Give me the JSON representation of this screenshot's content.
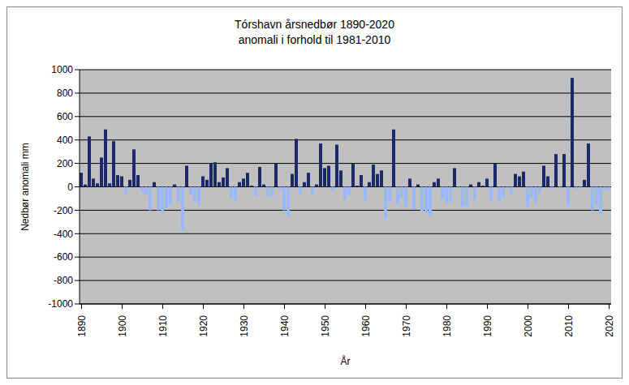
{
  "chart_data": {
    "type": "bar",
    "title": "Tórshavn årsnedbør 1890-2020",
    "subtitle": "anomali i forhold til 1981-2010",
    "x_label": "År",
    "y_label": "Nedbør anomali mm",
    "x": [
      1890,
      1891,
      1892,
      1893,
      1894,
      1895,
      1896,
      1897,
      1898,
      1899,
      1900,
      1901,
      1902,
      1903,
      1904,
      1905,
      1906,
      1907,
      1908,
      1909,
      1910,
      1911,
      1912,
      1913,
      1914,
      1915,
      1916,
      1917,
      1918,
      1919,
      1920,
      1921,
      1922,
      1923,
      1924,
      1925,
      1926,
      1927,
      1928,
      1929,
      1930,
      1931,
      1932,
      1933,
      1934,
      1935,
      1936,
      1937,
      1938,
      1939,
      1940,
      1941,
      1942,
      1943,
      1944,
      1945,
      1946,
      1947,
      1948,
      1949,
      1950,
      1951,
      1952,
      1953,
      1954,
      1955,
      1956,
      1957,
      1958,
      1959,
      1960,
      1961,
      1962,
      1963,
      1964,
      1965,
      1966,
      1967,
      1968,
      1969,
      1970,
      1971,
      1972,
      1973,
      1974,
      1975,
      1976,
      1977,
      1978,
      1979,
      1980,
      1981,
      1982,
      1983,
      1984,
      1985,
      1986,
      1987,
      1988,
      1989,
      1990,
      1991,
      1992,
      1993,
      1994,
      1995,
      1996,
      1997,
      1998,
      1999,
      2000,
      2001,
      2002,
      2003,
      2004,
      2005,
      2006,
      2007,
      2008,
      2009,
      2010,
      2011,
      2012,
      2013,
      2014,
      2015,
      2016,
      2017,
      2018,
      2019,
      2020
    ],
    "values": [
      120,
      20,
      430,
      70,
      30,
      250,
      490,
      30,
      390,
      100,
      90,
      -60,
      60,
      320,
      100,
      -40,
      -70,
      -200,
      40,
      -200,
      -220,
      -180,
      -160,
      20,
      -130,
      -370,
      180,
      -70,
      -130,
      -160,
      90,
      60,
      200,
      210,
      40,
      80,
      160,
      -90,
      -120,
      40,
      70,
      120,
      10,
      -80,
      170,
      20,
      -80,
      -80,
      200,
      -30,
      -200,
      -250,
      110,
      410,
      -60,
      40,
      120,
      -60,
      20,
      370,
      160,
      180,
      -30,
      360,
      140,
      -110,
      -70,
      200,
      10,
      100,
      -120,
      40,
      190,
      110,
      140,
      -270,
      -130,
      490,
      -150,
      -90,
      -170,
      70,
      -190,
      20,
      -210,
      -220,
      -250,
      40,
      70,
      -100,
      -140,
      -130,
      160,
      -10,
      -170,
      -160,
      20,
      -110,
      40,
      10,
      70,
      -120,
      200,
      -120,
      -90,
      -10,
      -60,
      110,
      90,
      130,
      -170,
      -90,
      -140,
      -50,
      180,
      90,
      -20,
      280,
      -10,
      280,
      -160,
      930,
      -20,
      -10,
      60,
      370,
      -200,
      -150,
      -240,
      -30,
      -20
    ],
    "colors": [
      "#1c2a6a",
      "#1c2a6a",
      "#1c2a6a",
      "#1c2a6a",
      "#1c2a6a",
      "#1c2a6a",
      "#1c2a6a",
      "#1c2a6a",
      "#1c2a6a",
      "#1c2a6a",
      "#1c2a6a",
      "#99b8ff",
      "#1c2a6a",
      "#1c2a6a",
      "#1c2a6a",
      "#99b8ff",
      "#99b8ff",
      "#99b8ff",
      "#1c2a6a",
      "#99b8ff",
      "#99b8ff",
      "#99b8ff",
      "#99b8ff",
      "#1c2a6a",
      "#99b8ff",
      "#99b8ff",
      "#1c2a6a",
      "#99b8ff",
      "#99b8ff",
      "#99b8ff",
      "#1c2a6a",
      "#1c2a6a",
      "#1c2a6a",
      "#1c2a6a",
      "#1c2a6a",
      "#1c2a6a",
      "#1c2a6a",
      "#99b8ff",
      "#99b8ff",
      "#1c2a6a",
      "#1c2a6a",
      "#1c2a6a",
      "#1c2a6a",
      "#99b8ff",
      "#1c2a6a",
      "#1c2a6a",
      "#99b8ff",
      "#99b8ff",
      "#1c2a6a",
      "#99b8ff",
      "#99b8ff",
      "#99b8ff",
      "#1c2a6a",
      "#1c2a6a",
      "#99b8ff",
      "#1c2a6a",
      "#1c2a6a",
      "#99b8ff",
      "#1c2a6a",
      "#1c2a6a",
      "#1c2a6a",
      "#1c2a6a",
      "#99b8ff",
      "#1c2a6a",
      "#1c2a6a",
      "#99b8ff",
      "#99b8ff",
      "#1c2a6a",
      "#1c2a6a",
      "#1c2a6a",
      "#99b8ff",
      "#1c2a6a",
      "#1c2a6a",
      "#1c2a6a",
      "#1c2a6a",
      "#99b8ff",
      "#99b8ff",
      "#1c2a6a",
      "#99b8ff",
      "#99b8ff",
      "#99b8ff",
      "#1c2a6a",
      "#99b8ff",
      "#1c2a6a",
      "#99b8ff",
      "#99b8ff",
      "#99b8ff",
      "#1c2a6a",
      "#1c2a6a",
      "#99b8ff",
      "#99b8ff",
      "#99b8ff",
      "#1c2a6a",
      "#99b8ff",
      "#99b8ff",
      "#99b8ff",
      "#1c2a6a",
      "#99b8ff",
      "#1c2a6a",
      "#1c2a6a",
      "#1c2a6a",
      "#99b8ff",
      "#1c2a6a",
      "#99b8ff",
      "#99b8ff",
      "#99b8ff",
      "#99b8ff",
      "#1c2a6a",
      "#1c2a6a",
      "#1c2a6a",
      "#99b8ff",
      "#99b8ff",
      "#99b8ff",
      "#99b8ff",
      "#1c2a6a",
      "#1c2a6a",
      "#99b8ff",
      "#1c2a6a",
      "#99b8ff",
      "#1c2a6a",
      "#99b8ff",
      "#1c2a6a",
      "#99b8ff",
      "#99b8ff",
      "#1c2a6a",
      "#1c2a6a",
      "#99b8ff",
      "#99b8ff",
      "#99b8ff",
      "#99b8ff",
      "#99b8ff"
    ],
    "xlim": [
      1889.5,
      2020.5
    ],
    "xticks": [
      1890,
      1900,
      1910,
      1920,
      1930,
      1940,
      1950,
      1960,
      1970,
      1980,
      1990,
      2000,
      2010,
      2020
    ],
    "ylim": [
      -1000,
      1000
    ],
    "yticks": [
      -1000,
      -800,
      -600,
      -400,
      -200,
      0,
      200,
      400,
      600,
      800,
      1000
    ],
    "grid": true
  }
}
